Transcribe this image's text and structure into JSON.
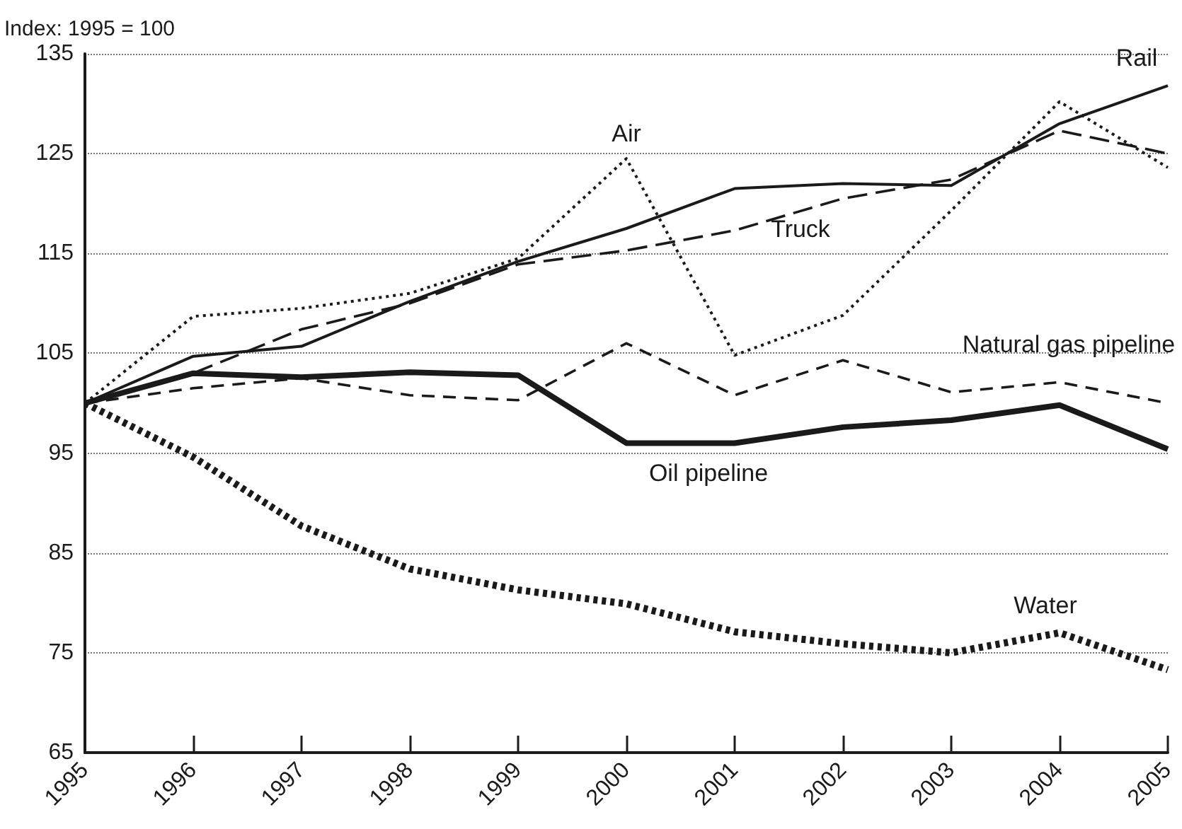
{
  "chart_data": {
    "type": "line",
    "ylabel": "Index: 1995 = 100",
    "categories": [
      "1995",
      "1996",
      "1997",
      "1998",
      "1999",
      "2000",
      "2001",
      "2002",
      "2003",
      "2004",
      "2005"
    ],
    "series": [
      {
        "name": "Rail",
        "color": "#1a1a1a",
        "line_style": "solid",
        "values": [
          100,
          104.7,
          105.7,
          110.2,
          114.2,
          117.5,
          121.5,
          122,
          121.8,
          128,
          131.8
        ]
      },
      {
        "name": "Air",
        "color": "#1a1a1a",
        "line_style": "dotted",
        "values": [
          100,
          108.7,
          109.5,
          111,
          114.5,
          124.5,
          104.8,
          108.8,
          119.3,
          130.2,
          123.6
        ]
      },
      {
        "name": "Truck",
        "color": "#1a1a1a",
        "line_style": "dashed",
        "values": [
          100,
          103,
          107.4,
          110,
          113.9,
          115.3,
          117.3,
          120.5,
          122.4,
          127.3,
          125
        ]
      },
      {
        "name": "Natural gas pipeline",
        "color": "#1a1a1a",
        "line_style": "dashed",
        "values": [
          100,
          101.5,
          102.5,
          100.8,
          100.3,
          106,
          100.8,
          104.3,
          101.1,
          102.1,
          100
        ]
      },
      {
        "name": "Oil pipeline",
        "color": "#1a1a1a",
        "line_style": "solid",
        "values": [
          100,
          103,
          102.6,
          103.1,
          102.8,
          96,
          96,
          97.6,
          98.3,
          99.8,
          95.4
        ]
      },
      {
        "name": "Water",
        "color": "#1a1a1a",
        "line_style": "dotted",
        "values": [
          100,
          94.6,
          87.7,
          83.4,
          81.3,
          79.9,
          77.1,
          75.9,
          75,
          77,
          73.3
        ]
      }
    ],
    "ylim": [
      65,
      135
    ],
    "yticks": [
      65,
      75,
      85,
      95,
      105,
      115,
      125,
      135
    ],
    "grid": "y",
    "marker": "none",
    "legend": false
  }
}
